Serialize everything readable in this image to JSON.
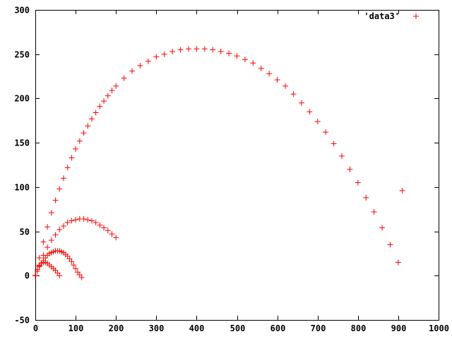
{
  "chart_data": {
    "type": "scatter",
    "title": "",
    "xlabel": "",
    "ylabel": "",
    "xlim": [
      0,
      1000
    ],
    "ylim": [
      -50,
      300
    ],
    "x_ticks": [
      "0",
      "100",
      "200",
      "300",
      "400",
      "500",
      "600",
      "700",
      "800",
      "900",
      "1000"
    ],
    "y_ticks": [
      "-50",
      "0",
      "50",
      "100",
      "150",
      "200",
      "250",
      "300"
    ],
    "grid": false,
    "legend_position": "top-right",
    "marker": "plus",
    "color": "#ff0000",
    "series": [
      {
        "name": "'data3'",
        "groups": [
          {
            "x": [
              0,
              10,
              20,
              30,
              40,
              50,
              60,
              70,
              80,
              90,
              100,
              110,
              120,
              130,
              140,
              150,
              160,
              170,
              180,
              190,
              200,
              220,
              240,
              260,
              280,
              300,
              320,
              340,
              360,
              380,
              400,
              420,
              440,
              460,
              480,
              500,
              520,
              540,
              560,
              580,
              600,
              620,
              640,
              660,
              680,
              700,
              720,
              740,
              760,
              780,
              800,
              820,
              840,
              860,
              880,
              900,
              910
            ],
            "y": [
              0,
              20,
              38,
              55,
              71,
              85,
              98,
              110,
              122,
              133,
              143,
              152,
              161,
              169,
              177,
              184,
              191,
              197,
              203,
              209,
              214,
              223,
              231,
              237,
              242,
              247,
              250,
              253,
              255,
              256,
              256,
              256,
              255,
              253,
              251,
              248,
              244,
              240,
              234,
              228,
              221,
              214,
              205,
              195,
              185,
              174,
              162,
              149,
              135,
              120,
              105,
              88,
              72,
              54,
              35,
              15,
              96
            ]
          },
          {
            "x": [
              0,
              10,
              20,
              30,
              40,
              50,
              60,
              70,
              80,
              90,
              100,
              110,
              120,
              130,
              140,
              150,
              160,
              170,
              180,
              190,
              200
            ],
            "y": [
              0,
              12,
              23,
              32,
              40,
              46,
              52,
              56,
              60,
              62,
              63,
              64,
              64,
              63,
              62,
              60,
              57,
              54,
              51,
              47,
              43
            ]
          },
          {
            "x": [
              0,
              5,
              10,
              15,
              20,
              25,
              30,
              35,
              40,
              45,
              50,
              55,
              60,
              65,
              70,
              75,
              80,
              85,
              90,
              95,
              100,
              105,
              110,
              115
            ],
            "y": [
              0,
              5,
              10,
              14,
              17,
              20,
              23,
              25,
              26,
              27,
              28,
              28,
              28,
              27,
              26,
              24,
              22,
              19,
              16,
              12,
              8,
              4,
              1,
              -2
            ]
          },
          {
            "x": [
              0,
              5,
              10,
              15,
              20,
              25,
              30,
              35,
              40,
              45,
              50,
              55,
              60
            ],
            "y": [
              0,
              7,
              11,
              14,
              15,
              15,
              14,
              12,
              10,
              8,
              6,
              3,
              0
            ]
          }
        ]
      }
    ]
  }
}
